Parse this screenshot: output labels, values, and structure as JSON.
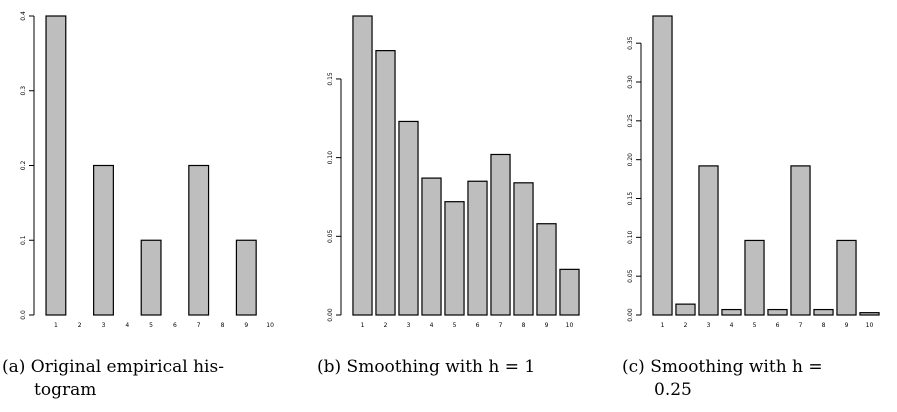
{
  "chart_data": [
    {
      "type": "bar",
      "categories": [
        "1",
        "2",
        "3",
        "4",
        "5",
        "6",
        "7",
        "8",
        "9",
        "10"
      ],
      "values": [
        0.4,
        0.0,
        0.2,
        0.0,
        0.1,
        0.0,
        0.2,
        0.0,
        0.1,
        0.0
      ],
      "yticks": [
        "0.0",
        "0.1",
        "0.2",
        "0.3",
        "0.4"
      ],
      "ylim": [
        0,
        0.4
      ],
      "caption": "(a) Original empirical histogram",
      "caption_lines": [
        "(a) Original empirical his-",
        "togram"
      ]
    },
    {
      "type": "bar",
      "categories": [
        "1",
        "2",
        "3",
        "4",
        "5",
        "6",
        "7",
        "8",
        "9",
        "10"
      ],
      "values": [
        0.19,
        0.168,
        0.123,
        0.087,
        0.072,
        0.085,
        0.102,
        0.084,
        0.058,
        0.029
      ],
      "yticks": [
        "0.00",
        "0.05",
        "0.10",
        "0.15"
      ],
      "ylim": [
        0,
        0.19
      ],
      "caption": "(b) Smoothing with h = 1",
      "caption_lines": [
        "(b) Smoothing with h = 1"
      ]
    },
    {
      "type": "bar",
      "categories": [
        "1",
        "2",
        "3",
        "4",
        "5",
        "6",
        "7",
        "8",
        "9",
        "10"
      ],
      "values": [
        0.385,
        0.014,
        0.192,
        0.007,
        0.096,
        0.007,
        0.192,
        0.007,
        0.096,
        0.003
      ],
      "yticks": [
        "0.00",
        "0.05",
        "0.10",
        "0.15",
        "0.20",
        "0.25",
        "0.30",
        "0.35"
      ],
      "ylim": [
        0,
        0.385
      ],
      "caption": "(c) Smoothing with h = 0.25",
      "caption_lines": [
        "(c) Smoothing with h =",
        "0.25"
      ]
    }
  ]
}
